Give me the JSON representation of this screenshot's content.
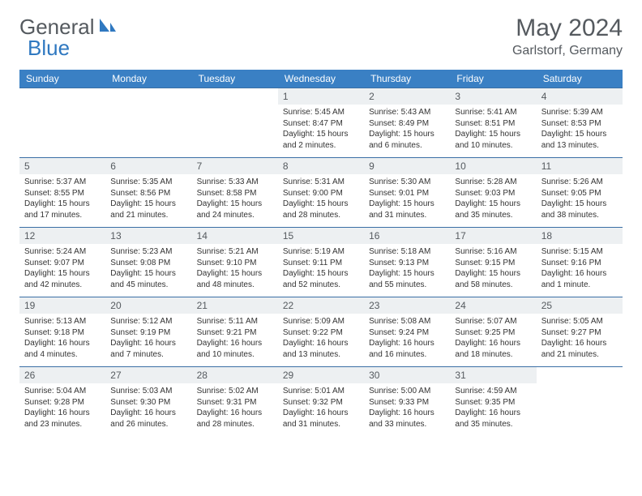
{
  "brand": {
    "part1": "General",
    "part2": "Blue"
  },
  "title": "May 2024",
  "location": "Garlstorf, Germany",
  "colors": {
    "header_bg": "#3a80c4",
    "header_text": "#ffffff",
    "border": "#3a6fa5",
    "daynum_bg": "#edf0f2",
    "text": "#555a5f"
  },
  "weekdays": [
    "Sunday",
    "Monday",
    "Tuesday",
    "Wednesday",
    "Thursday",
    "Friday",
    "Saturday"
  ],
  "weeks": [
    [
      {
        "n": "",
        "sr": "",
        "ss": "",
        "dl": ""
      },
      {
        "n": "",
        "sr": "",
        "ss": "",
        "dl": ""
      },
      {
        "n": "",
        "sr": "",
        "ss": "",
        "dl": ""
      },
      {
        "n": "1",
        "sr": "Sunrise: 5:45 AM",
        "ss": "Sunset: 8:47 PM",
        "dl": "Daylight: 15 hours and 2 minutes."
      },
      {
        "n": "2",
        "sr": "Sunrise: 5:43 AM",
        "ss": "Sunset: 8:49 PM",
        "dl": "Daylight: 15 hours and 6 minutes."
      },
      {
        "n": "3",
        "sr": "Sunrise: 5:41 AM",
        "ss": "Sunset: 8:51 PM",
        "dl": "Daylight: 15 hours and 10 minutes."
      },
      {
        "n": "4",
        "sr": "Sunrise: 5:39 AM",
        "ss": "Sunset: 8:53 PM",
        "dl": "Daylight: 15 hours and 13 minutes."
      }
    ],
    [
      {
        "n": "5",
        "sr": "Sunrise: 5:37 AM",
        "ss": "Sunset: 8:55 PM",
        "dl": "Daylight: 15 hours and 17 minutes."
      },
      {
        "n": "6",
        "sr": "Sunrise: 5:35 AM",
        "ss": "Sunset: 8:56 PM",
        "dl": "Daylight: 15 hours and 21 minutes."
      },
      {
        "n": "7",
        "sr": "Sunrise: 5:33 AM",
        "ss": "Sunset: 8:58 PM",
        "dl": "Daylight: 15 hours and 24 minutes."
      },
      {
        "n": "8",
        "sr": "Sunrise: 5:31 AM",
        "ss": "Sunset: 9:00 PM",
        "dl": "Daylight: 15 hours and 28 minutes."
      },
      {
        "n": "9",
        "sr": "Sunrise: 5:30 AM",
        "ss": "Sunset: 9:01 PM",
        "dl": "Daylight: 15 hours and 31 minutes."
      },
      {
        "n": "10",
        "sr": "Sunrise: 5:28 AM",
        "ss": "Sunset: 9:03 PM",
        "dl": "Daylight: 15 hours and 35 minutes."
      },
      {
        "n": "11",
        "sr": "Sunrise: 5:26 AM",
        "ss": "Sunset: 9:05 PM",
        "dl": "Daylight: 15 hours and 38 minutes."
      }
    ],
    [
      {
        "n": "12",
        "sr": "Sunrise: 5:24 AM",
        "ss": "Sunset: 9:07 PM",
        "dl": "Daylight: 15 hours and 42 minutes."
      },
      {
        "n": "13",
        "sr": "Sunrise: 5:23 AM",
        "ss": "Sunset: 9:08 PM",
        "dl": "Daylight: 15 hours and 45 minutes."
      },
      {
        "n": "14",
        "sr": "Sunrise: 5:21 AM",
        "ss": "Sunset: 9:10 PM",
        "dl": "Daylight: 15 hours and 48 minutes."
      },
      {
        "n": "15",
        "sr": "Sunrise: 5:19 AM",
        "ss": "Sunset: 9:11 PM",
        "dl": "Daylight: 15 hours and 52 minutes."
      },
      {
        "n": "16",
        "sr": "Sunrise: 5:18 AM",
        "ss": "Sunset: 9:13 PM",
        "dl": "Daylight: 15 hours and 55 minutes."
      },
      {
        "n": "17",
        "sr": "Sunrise: 5:16 AM",
        "ss": "Sunset: 9:15 PM",
        "dl": "Daylight: 15 hours and 58 minutes."
      },
      {
        "n": "18",
        "sr": "Sunrise: 5:15 AM",
        "ss": "Sunset: 9:16 PM",
        "dl": "Daylight: 16 hours and 1 minute."
      }
    ],
    [
      {
        "n": "19",
        "sr": "Sunrise: 5:13 AM",
        "ss": "Sunset: 9:18 PM",
        "dl": "Daylight: 16 hours and 4 minutes."
      },
      {
        "n": "20",
        "sr": "Sunrise: 5:12 AM",
        "ss": "Sunset: 9:19 PM",
        "dl": "Daylight: 16 hours and 7 minutes."
      },
      {
        "n": "21",
        "sr": "Sunrise: 5:11 AM",
        "ss": "Sunset: 9:21 PM",
        "dl": "Daylight: 16 hours and 10 minutes."
      },
      {
        "n": "22",
        "sr": "Sunrise: 5:09 AM",
        "ss": "Sunset: 9:22 PM",
        "dl": "Daylight: 16 hours and 13 minutes."
      },
      {
        "n": "23",
        "sr": "Sunrise: 5:08 AM",
        "ss": "Sunset: 9:24 PM",
        "dl": "Daylight: 16 hours and 16 minutes."
      },
      {
        "n": "24",
        "sr": "Sunrise: 5:07 AM",
        "ss": "Sunset: 9:25 PM",
        "dl": "Daylight: 16 hours and 18 minutes."
      },
      {
        "n": "25",
        "sr": "Sunrise: 5:05 AM",
        "ss": "Sunset: 9:27 PM",
        "dl": "Daylight: 16 hours and 21 minutes."
      }
    ],
    [
      {
        "n": "26",
        "sr": "Sunrise: 5:04 AM",
        "ss": "Sunset: 9:28 PM",
        "dl": "Daylight: 16 hours and 23 minutes."
      },
      {
        "n": "27",
        "sr": "Sunrise: 5:03 AM",
        "ss": "Sunset: 9:30 PM",
        "dl": "Daylight: 16 hours and 26 minutes."
      },
      {
        "n": "28",
        "sr": "Sunrise: 5:02 AM",
        "ss": "Sunset: 9:31 PM",
        "dl": "Daylight: 16 hours and 28 minutes."
      },
      {
        "n": "29",
        "sr": "Sunrise: 5:01 AM",
        "ss": "Sunset: 9:32 PM",
        "dl": "Daylight: 16 hours and 31 minutes."
      },
      {
        "n": "30",
        "sr": "Sunrise: 5:00 AM",
        "ss": "Sunset: 9:33 PM",
        "dl": "Daylight: 16 hours and 33 minutes."
      },
      {
        "n": "31",
        "sr": "Sunrise: 4:59 AM",
        "ss": "Sunset: 9:35 PM",
        "dl": "Daylight: 16 hours and 35 minutes."
      },
      {
        "n": "",
        "sr": "",
        "ss": "",
        "dl": ""
      }
    ]
  ]
}
